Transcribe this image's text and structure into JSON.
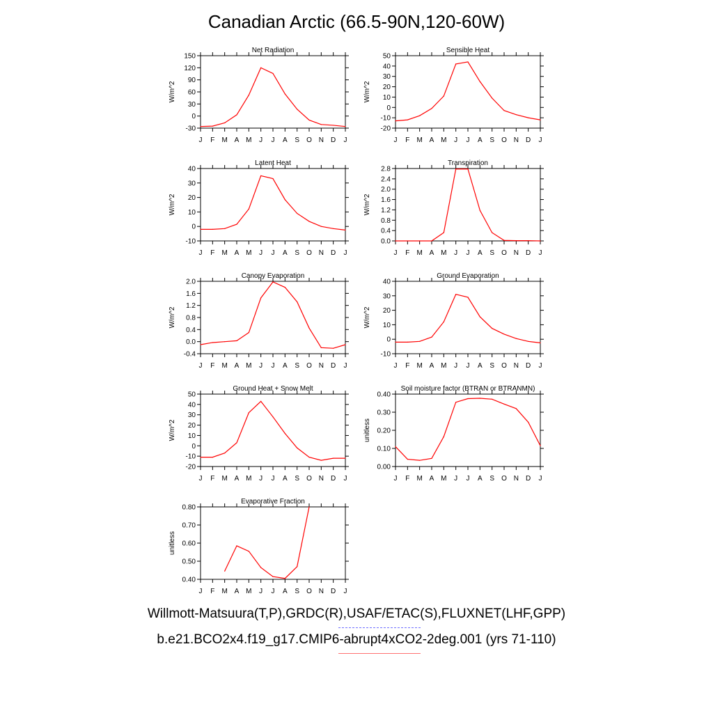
{
  "title": "Canadian Arctic (66.5-90N,120-60W)",
  "footer": {
    "observations": "Willmott-Matsuura(T,P),GRDC(R),USAF/ETAC(S),FLUXNET(LHF,GPP)",
    "model": "b.e21.BCO2x4.f19_g17.CMIP6-abrupt4xCO2-2deg.001 (yrs 71-110)"
  },
  "colors": {
    "model": "#ff0000",
    "observations": "#6f6fff",
    "axis": "#000000"
  },
  "chart_data": [
    {
      "type": "line",
      "title": "Net Radiation",
      "ylabel": "W/m^2",
      "categories": [
        "J",
        "F",
        "M",
        "A",
        "M",
        "J",
        "J",
        "A",
        "S",
        "O",
        "N",
        "D",
        "J"
      ],
      "ylim": [
        -30,
        150
      ],
      "yticks": [
        -30,
        0,
        30,
        60,
        90,
        120,
        150
      ],
      "tick_decimals": 0,
      "series": [
        {
          "values": [
            -26,
            -25,
            -17,
            3,
            52,
            120,
            106,
            55,
            17,
            -10,
            -21,
            -23,
            -26
          ]
        }
      ]
    },
    {
      "type": "line",
      "title": "Sensible Heat",
      "ylabel": "W/m^2",
      "categories": [
        "J",
        "F",
        "M",
        "A",
        "M",
        "J",
        "J",
        "A",
        "S",
        "O",
        "N",
        "D",
        "J"
      ],
      "ylim": [
        -20,
        50
      ],
      "yticks": [
        -20,
        -10,
        0,
        10,
        20,
        30,
        40,
        50
      ],
      "tick_decimals": 0,
      "series": [
        {
          "values": [
            -13,
            -12,
            -8,
            -1,
            11,
            42,
            44,
            25,
            9,
            -3,
            -7,
            -10,
            -12
          ]
        }
      ]
    },
    {
      "type": "line",
      "title": "Latent Heat",
      "ylabel": "W/m^2",
      "categories": [
        "J",
        "F",
        "M",
        "A",
        "M",
        "J",
        "J",
        "A",
        "S",
        "O",
        "N",
        "D",
        "J"
      ],
      "ylim": [
        -10,
        40
      ],
      "yticks": [
        -10,
        0,
        10,
        20,
        30,
        40
      ],
      "tick_decimals": 0,
      "series": [
        {
          "values": [
            -2,
            -2,
            -1.5,
            1.5,
            12,
            35,
            33,
            18.5,
            9,
            3.5,
            0,
            -1.5,
            -2.5
          ]
        }
      ]
    },
    {
      "type": "line",
      "title": "Transpiration",
      "ylabel": "W/m^2",
      "categories": [
        "J",
        "F",
        "M",
        "A",
        "M",
        "J",
        "J",
        "A",
        "S",
        "O",
        "N",
        "D",
        "J"
      ],
      "ylim": [
        0,
        2.8
      ],
      "yticks": [
        0,
        0.4,
        0.8,
        1.2,
        1.6,
        2.0,
        2.4,
        2.8
      ],
      "tick_decimals": 1,
      "series": [
        {
          "values": [
            0,
            0,
            0,
            0,
            0.32,
            2.78,
            2.78,
            1.18,
            0.32,
            0.02,
            0.01,
            0.01,
            0
          ]
        }
      ]
    },
    {
      "type": "line",
      "title": "Canopy Evaporation",
      "ylabel": "W/m^2",
      "categories": [
        "J",
        "F",
        "M",
        "A",
        "M",
        "J",
        "J",
        "A",
        "S",
        "O",
        "N",
        "D",
        "J"
      ],
      "ylim": [
        -0.4,
        2.0
      ],
      "yticks": [
        -0.4,
        0,
        0.4,
        0.8,
        1.2,
        1.6,
        2.0
      ],
      "tick_decimals": 1,
      "series": [
        {
          "values": [
            -0.1,
            -0.03,
            0,
            0.03,
            0.3,
            1.45,
            1.98,
            1.8,
            1.32,
            0.45,
            -0.2,
            -0.22,
            -0.1
          ]
        }
      ]
    },
    {
      "type": "line",
      "title": "Ground Evaporation",
      "ylabel": "W/m^2",
      "categories": [
        "J",
        "F",
        "M",
        "A",
        "M",
        "J",
        "J",
        "A",
        "S",
        "O",
        "N",
        "D",
        "J"
      ],
      "ylim": [
        -10,
        40
      ],
      "yticks": [
        -10,
        0,
        10,
        20,
        30,
        40
      ],
      "tick_decimals": 0,
      "series": [
        {
          "values": [
            -2,
            -2,
            -1.5,
            1.5,
            12,
            31,
            29,
            15.5,
            7.5,
            3.5,
            0.5,
            -1.5,
            -2.5
          ]
        }
      ]
    },
    {
      "type": "line",
      "title": "Ground Heat + Snow Melt",
      "ylabel": "W/m^2",
      "categories": [
        "J",
        "F",
        "M",
        "A",
        "M",
        "J",
        "J",
        "A",
        "S",
        "O",
        "N",
        "D",
        "J"
      ],
      "ylim": [
        -20,
        50
      ],
      "yticks": [
        -20,
        -10,
        0,
        10,
        20,
        30,
        40,
        50
      ],
      "tick_decimals": 0,
      "series": [
        {
          "values": [
            -11,
            -11,
            -7,
            3,
            32,
            43,
            28,
            12,
            -2,
            -11,
            -14,
            -12,
            -12
          ]
        }
      ]
    },
    {
      "type": "line",
      "title": "Soil moisture factor (BTRAN or BTRANMN)",
      "ylabel": "unitless",
      "categories": [
        "J",
        "F",
        "M",
        "A",
        "M",
        "J",
        "J",
        "A",
        "S",
        "O",
        "N",
        "D",
        "J"
      ],
      "ylim": [
        0,
        0.4
      ],
      "yticks": [
        0,
        0.1,
        0.2,
        0.3,
        0.4
      ],
      "tick_decimals": 2,
      "series": [
        {
          "values": [
            0.11,
            0.04,
            0.034,
            0.045,
            0.165,
            0.355,
            0.375,
            0.377,
            0.372,
            0.345,
            0.32,
            0.245,
            0.115
          ]
        }
      ]
    },
    {
      "type": "line",
      "title": "Evaporative Fraction",
      "ylabel": "unitless",
      "categories": [
        "J",
        "F",
        "M",
        "A",
        "M",
        "J",
        "J",
        "A",
        "S",
        "O",
        "N",
        "D",
        "J"
      ],
      "ylim": [
        0.4,
        0.8
      ],
      "yticks": [
        0.4,
        0.5,
        0.6,
        0.7,
        0.8
      ],
      "tick_decimals": 2,
      "series": [
        {
          "values": [
            null,
            null,
            0.445,
            0.585,
            0.555,
            0.465,
            0.415,
            0.405,
            0.47,
            0.8,
            null,
            null,
            null
          ]
        }
      ]
    }
  ]
}
